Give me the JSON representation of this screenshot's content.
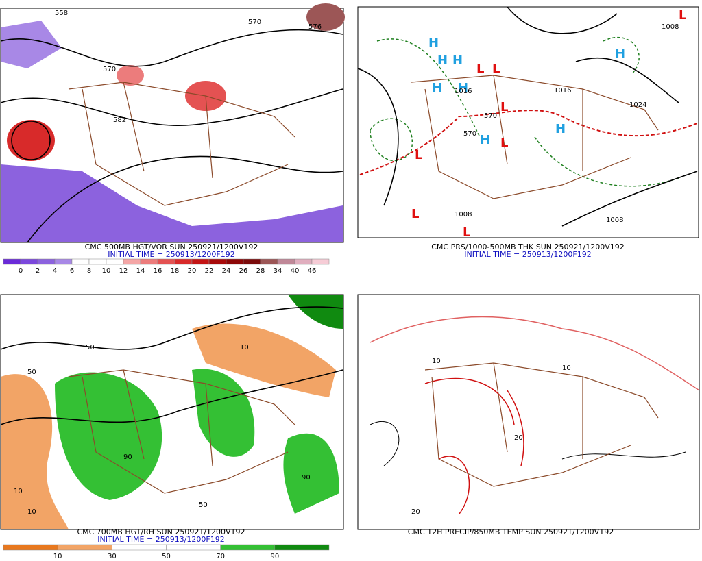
{
  "panels": [
    {
      "caption": "CMC 500MB HGT/VOR SUN 250921/1200V192",
      "init": "INITIAL TIME = 250913/1200F192",
      "colorbar": {
        "labels": [
          "0",
          "2",
          "4",
          "6",
          "8",
          "10",
          "12",
          "14",
          "16",
          "18",
          "20",
          "22",
          "24",
          "26",
          "28",
          "34",
          "40",
          "46"
        ],
        "colors": [
          "#6a2ad8",
          "#7c48dc",
          "#8c62de",
          "#a888e6",
          "#ffffff",
          "#ffffff",
          "#ffffff",
          "#f4a6a6",
          "#ec7c7c",
          "#e45252",
          "#d82a2a",
          "#c41414",
          "#a80a0a",
          "#8c0606",
          "#7a0a0a",
          "#9c5656",
          "#c08898",
          "#e0aebe",
          "#f6ccd6"
        ]
      },
      "labels": [
        "558",
        "570",
        "582",
        "570",
        "576"
      ]
    },
    {
      "caption": "CMC PRS/1000-500MB THK SUN 250921/1200V192",
      "init": "INITIAL TIME = 250913/1200F192",
      "labels": [
        "1016",
        "1016",
        "1024",
        "1008",
        "1008",
        "1008",
        "570",
        "570"
      ],
      "highs": [
        "H",
        "H",
        "H",
        "H",
        "H",
        "H",
        "H",
        "H"
      ],
      "lows": [
        "L",
        "L",
        "L",
        "L",
        "L",
        "L",
        "L",
        "L"
      ]
    },
    {
      "caption": "CMC 700MB HGT/RH SUN 250921/1200V192",
      "init": "INITIAL TIME = 250913/1200F192",
      "colorbar": {
        "labels": [
          "10",
          "30",
          "50",
          "70",
          "90"
        ],
        "colors": [
          "#e8781e",
          "#f2a466",
          "#ffffff",
          "#ffffff",
          "#34c034",
          "#108a10"
        ]
      },
      "labels": [
        "10",
        "50",
        "90",
        "10",
        "50",
        "90",
        "10",
        "50"
      ]
    },
    {
      "caption": "CMC 12H PRECIP/850MB TEMP SUN 250921/1200V192",
      "labels": [
        "10",
        "20",
        "20",
        "10"
      ]
    }
  ]
}
